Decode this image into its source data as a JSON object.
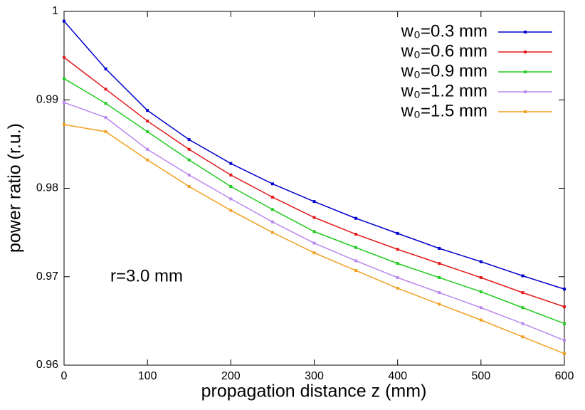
{
  "chart_data": {
    "type": "line",
    "xlabel": "propagation distance z (mm)",
    "ylabel": "power ratio (r.u.)",
    "annotation": "r=3.0 mm",
    "x": [
      0,
      50,
      100,
      150,
      200,
      250,
      300,
      350,
      400,
      450,
      500,
      550,
      600
    ],
    "series": [
      {
        "name": "w₀=0.3 mm",
        "color": "#0000cc",
        "values": [
          0.9989,
          0.9935,
          0.9888,
          0.9855,
          0.9828,
          0.9805,
          0.9785,
          0.9766,
          0.9749,
          0.9732,
          0.9717,
          0.9701,
          0.9686
        ]
      },
      {
        "name": "w₀=0.6 mm",
        "color": "#e41a1c",
        "values": [
          0.9948,
          0.9912,
          0.9876,
          0.9844,
          0.9815,
          0.979,
          0.9767,
          0.9748,
          0.9731,
          0.9715,
          0.9699,
          0.9682,
          0.9666
        ]
      },
      {
        "name": "w₀=0.9 mm",
        "color": "#22cc22",
        "values": [
          0.9924,
          0.9896,
          0.9864,
          0.9832,
          0.9802,
          0.9776,
          0.9751,
          0.9733,
          0.9715,
          0.9699,
          0.9683,
          0.9665,
          0.9647
        ]
      },
      {
        "name": "w₀=1.2 mm",
        "color": "#bb88ee",
        "values": [
          0.9897,
          0.988,
          0.9844,
          0.9815,
          0.9788,
          0.9762,
          0.9738,
          0.9718,
          0.9699,
          0.9682,
          0.9665,
          0.9647,
          0.9628
        ]
      },
      {
        "name": "w₀=1.5 mm",
        "color": "#f0a020",
        "values": [
          0.9872,
          0.9864,
          0.9832,
          0.9802,
          0.9775,
          0.975,
          0.9727,
          0.9707,
          0.9687,
          0.9669,
          0.9651,
          0.9632,
          0.9613
        ]
      }
    ],
    "xlim": [
      0,
      600
    ],
    "xticks": [
      0,
      100,
      200,
      300,
      400,
      500,
      600
    ],
    "ylim": [
      0.96,
      1
    ],
    "yticks": [
      0.96,
      0.97,
      0.98,
      0.99,
      1
    ],
    "legend": "upper right"
  }
}
